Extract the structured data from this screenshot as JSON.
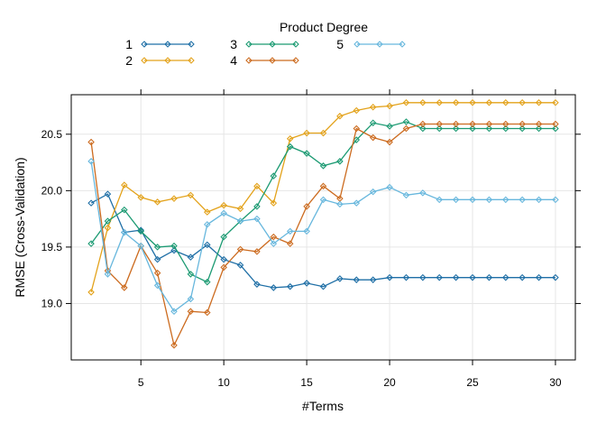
{
  "chart_data": {
    "type": "line",
    "title": "",
    "xlabel": "#Terms",
    "ylabel": "RMSE (Cross-Validation)",
    "xlim": [
      0.8,
      31.2
    ],
    "ylim": [
      18.5,
      20.85
    ],
    "x_ticks": [
      5,
      10,
      15,
      20,
      25,
      30
    ],
    "y_ticks": [
      19.0,
      19.5,
      20.0,
      20.5
    ],
    "x_tick_labels": [
      "5",
      "10",
      "15",
      "20",
      "25",
      "30"
    ],
    "y_tick_labels": [
      "19.0",
      "19.5",
      "20.0",
      "20.5"
    ],
    "grid": true,
    "legend_title": "Product Degree",
    "legend_position": "top",
    "marker": "diamond",
    "x": [
      2,
      3,
      4,
      5,
      6,
      7,
      8,
      9,
      10,
      11,
      12,
      13,
      14,
      15,
      16,
      17,
      18,
      19,
      20,
      21,
      22,
      23,
      24,
      25,
      26,
      27,
      28,
      29,
      30
    ],
    "series": [
      {
        "name": "1",
        "color": "#1f6fa6",
        "values": [
          19.89,
          19.97,
          19.63,
          19.65,
          19.39,
          19.47,
          19.41,
          19.52,
          19.39,
          19.34,
          19.17,
          19.14,
          19.15,
          19.18,
          19.15,
          19.22,
          19.21,
          19.21,
          19.23,
          19.23,
          19.23,
          19.23,
          19.23,
          19.23,
          19.23,
          19.23,
          19.23,
          19.23,
          19.23
        ]
      },
      {
        "name": "2",
        "color": "#e3a21a",
        "values": [
          19.1,
          19.67,
          20.05,
          19.94,
          19.9,
          19.93,
          19.96,
          19.81,
          19.87,
          19.84,
          20.04,
          19.89,
          20.46,
          20.51,
          20.51,
          20.66,
          20.71,
          20.74,
          20.75,
          20.78,
          20.78,
          20.78,
          20.78,
          20.78,
          20.78,
          20.78,
          20.78,
          20.78,
          20.78
        ]
      },
      {
        "name": "3",
        "color": "#1b9a72",
        "values": [
          19.53,
          19.73,
          19.83,
          19.64,
          19.5,
          19.51,
          19.26,
          19.19,
          19.59,
          19.73,
          19.86,
          20.13,
          20.39,
          20.33,
          20.22,
          20.26,
          20.45,
          20.6,
          20.57,
          20.61,
          20.55,
          20.55,
          20.55,
          20.55,
          20.55,
          20.55,
          20.55,
          20.55,
          20.55
        ]
      },
      {
        "name": "4",
        "color": "#cc6b1f",
        "values": [
          20.43,
          19.29,
          19.14,
          19.51,
          19.27,
          18.63,
          18.93,
          18.92,
          19.32,
          19.48,
          19.46,
          19.59,
          19.53,
          19.86,
          20.04,
          19.93,
          20.55,
          20.47,
          20.43,
          20.55,
          20.59,
          20.59,
          20.59,
          20.59,
          20.59,
          20.59,
          20.59,
          20.59,
          20.59
        ]
      },
      {
        "name": "5",
        "color": "#67b7dd",
        "values": [
          20.26,
          19.26,
          19.63,
          19.51,
          19.16,
          18.93,
          19.04,
          19.7,
          19.8,
          19.73,
          19.75,
          19.53,
          19.64,
          19.64,
          19.92,
          19.88,
          19.89,
          19.99,
          20.03,
          19.96,
          19.98,
          19.92,
          19.92,
          19.92,
          19.92,
          19.92,
          19.92,
          19.92,
          19.92
        ]
      }
    ]
  }
}
